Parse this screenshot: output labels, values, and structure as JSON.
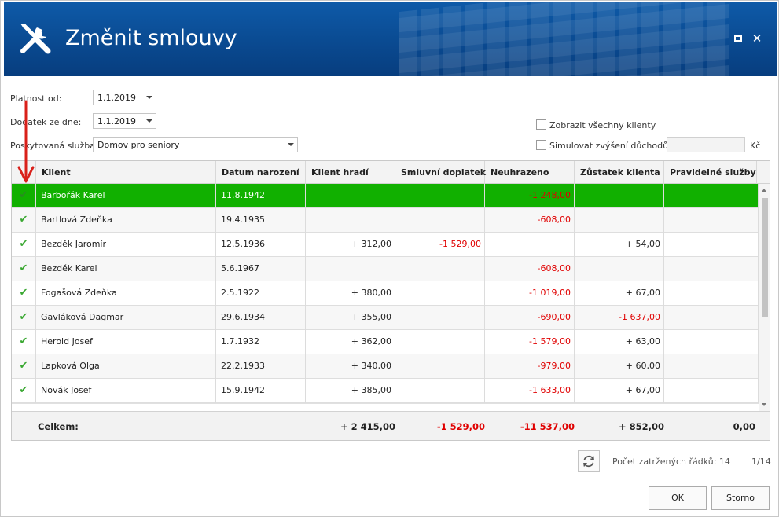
{
  "window": {
    "title": "Změnit smlouvy",
    "icon": "wrench-screwdriver-icon",
    "maximize_icon": "maximize-icon",
    "close_glyph": "✕"
  },
  "form": {
    "platnost_label": "Platnost od:",
    "platnost_value": "1.1.2019",
    "dodatek_label": "Dodatek ze dne:",
    "dodatek_value": "1.1.2019",
    "sluzba_label": "Poskytovaná služba:",
    "sluzba_value": "Domov pro seniory",
    "show_all_label": "Zobrazit všechny klienty",
    "simulate_label": "Simulovat zvýšení důchodů o:",
    "simulate_value": "",
    "currency": "Kč"
  },
  "grid": {
    "columns": [
      "Klient",
      "Datum narození",
      "Klient hradí",
      "Smluvní doplatek",
      "Neuhrazeno",
      "Zůstatek klienta",
      "Pravidelné služby"
    ],
    "check_glyph": "✔",
    "rows": [
      {
        "klient": "Barbořák Karel",
        "datum": "11.8.1942",
        "hradi": "",
        "doplatek": "",
        "neuhrazeno": "-1 248,00",
        "zustatek": "",
        "zustatek_neg": false,
        "sluzby": ""
      },
      {
        "klient": "Bartlová Zdeňka",
        "datum": "19.4.1935",
        "hradi": "",
        "doplatek": "",
        "neuhrazeno": "-608,00",
        "zustatek": "",
        "zustatek_neg": false,
        "sluzby": ""
      },
      {
        "klient": "Bezděk Jaromír",
        "datum": "12.5.1936",
        "hradi": "+ 312,00",
        "doplatek": "-1 529,00",
        "neuhrazeno": "",
        "zustatek": "+ 54,00",
        "zustatek_neg": false,
        "sluzby": ""
      },
      {
        "klient": "Bezděk Karel",
        "datum": "5.6.1967",
        "hradi": "",
        "doplatek": "",
        "neuhrazeno": "-608,00",
        "zustatek": "",
        "zustatek_neg": false,
        "sluzby": ""
      },
      {
        "klient": "Fogašová Zdeňka",
        "datum": "2.5.1922",
        "hradi": "+ 380,00",
        "doplatek": "",
        "neuhrazeno": "-1 019,00",
        "zustatek": "+ 67,00",
        "zustatek_neg": false,
        "sluzby": ""
      },
      {
        "klient": "Gavláková Dagmar",
        "datum": "29.6.1934",
        "hradi": "+ 355,00",
        "doplatek": "",
        "neuhrazeno": "-690,00",
        "zustatek": "-1 637,00",
        "zustatek_neg": true,
        "sluzby": ""
      },
      {
        "klient": "Herold Josef",
        "datum": "1.7.1932",
        "hradi": "+ 362,00",
        "doplatek": "",
        "neuhrazeno": "-1 579,00",
        "zustatek": "+ 63,00",
        "zustatek_neg": false,
        "sluzby": ""
      },
      {
        "klient": "Lapková Olga",
        "datum": "22.2.1933",
        "hradi": "+ 340,00",
        "doplatek": "",
        "neuhrazeno": "-979,00",
        "zustatek": "+ 60,00",
        "zustatek_neg": false,
        "sluzby": ""
      },
      {
        "klient": "Novák Josef",
        "datum": "15.9.1942",
        "hradi": "+ 385,00",
        "doplatek": "",
        "neuhrazeno": "-1 633,00",
        "zustatek": "+ 67,00",
        "zustatek_neg": false,
        "sluzby": ""
      }
    ],
    "footer": {
      "label": "Celkem:",
      "hradi": "+ 2 415,00",
      "doplatek": "-1 529,00",
      "neuhrazeno": "-11 537,00",
      "zustatek": "+ 852,00",
      "sluzby": "0,00"
    }
  },
  "status": {
    "checked_rows": "Počet zatržených řádků: 14",
    "page": "1/14",
    "refresh_icon": "refresh-icon"
  },
  "buttons": {
    "ok": "OK",
    "cancel": "Storno"
  },
  "colors": {
    "title_bar": "#0a4a91",
    "selected_row": "#11b000",
    "negative": "#e00000",
    "check": "#3aa832",
    "annotation": "#d9201a"
  }
}
